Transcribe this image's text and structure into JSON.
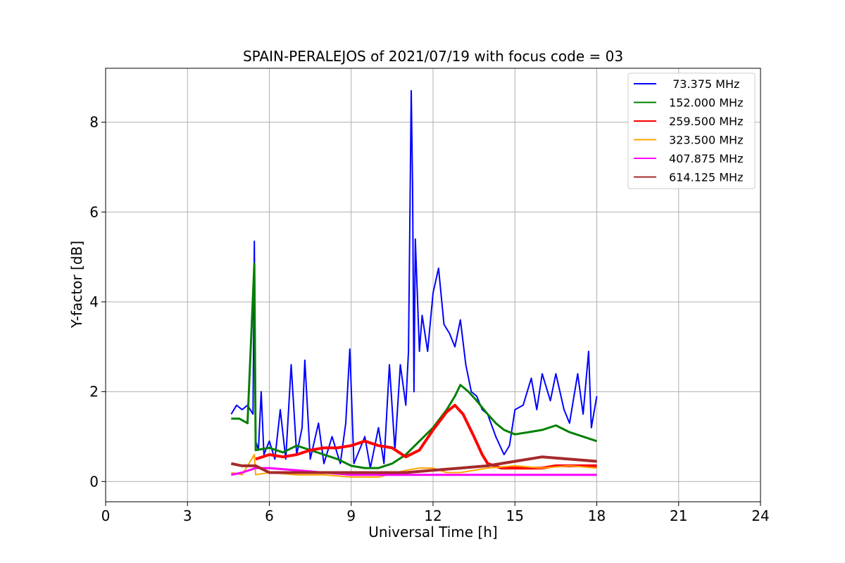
{
  "chart_data": {
    "type": "line",
    "title": "SPAIN-PERALEJOS of 2021/07/19 with focus code = 03",
    "xlabel": "Universal Time [h]",
    "ylabel": "Y-factor [dB]",
    "xlim": [
      0,
      24
    ],
    "ylim": [
      -0.45,
      9.2
    ],
    "xticks": [
      0,
      3,
      6,
      9,
      12,
      15,
      18,
      21,
      24
    ],
    "yticks": [
      0,
      2,
      4,
      6,
      8
    ],
    "grid": true,
    "legend_position": "top-right",
    "series": [
      {
        "name": " 73.375 MHz",
        "color": "#0000ff",
        "points": [
          [
            4.6,
            1.5
          ],
          [
            4.8,
            1.7
          ],
          [
            5.0,
            1.6
          ],
          [
            5.2,
            1.7
          ],
          [
            5.4,
            1.5
          ],
          [
            5.45,
            5.35
          ],
          [
            5.5,
            0.9
          ],
          [
            5.6,
            0.7
          ],
          [
            5.7,
            2.0
          ],
          [
            5.8,
            0.6
          ],
          [
            6.0,
            0.9
          ],
          [
            6.2,
            0.5
          ],
          [
            6.4,
            1.6
          ],
          [
            6.6,
            0.5
          ],
          [
            6.8,
            2.6
          ],
          [
            7.0,
            0.6
          ],
          [
            7.2,
            1.2
          ],
          [
            7.3,
            2.7
          ],
          [
            7.5,
            0.5
          ],
          [
            7.8,
            1.3
          ],
          [
            8.0,
            0.4
          ],
          [
            8.3,
            1.0
          ],
          [
            8.6,
            0.4
          ],
          [
            8.8,
            1.3
          ],
          [
            8.95,
            2.95
          ],
          [
            9.1,
            0.4
          ],
          [
            9.5,
            1.0
          ],
          [
            9.7,
            0.3
          ],
          [
            10.0,
            1.2
          ],
          [
            10.2,
            0.4
          ],
          [
            10.4,
            2.6
          ],
          [
            10.6,
            0.7
          ],
          [
            10.8,
            2.6
          ],
          [
            11.0,
            1.7
          ],
          [
            11.1,
            2.9
          ],
          [
            11.2,
            8.7
          ],
          [
            11.25,
            6.6
          ],
          [
            11.3,
            2.0
          ],
          [
            11.35,
            5.4
          ],
          [
            11.5,
            2.9
          ],
          [
            11.6,
            3.7
          ],
          [
            11.8,
            2.9
          ],
          [
            12.0,
            4.2
          ],
          [
            12.2,
            4.75
          ],
          [
            12.4,
            3.5
          ],
          [
            12.6,
            3.3
          ],
          [
            12.8,
            3.0
          ],
          [
            13.0,
            3.6
          ],
          [
            13.2,
            2.6
          ],
          [
            13.4,
            2.0
          ],
          [
            13.6,
            1.9
          ],
          [
            13.8,
            1.6
          ],
          [
            14.0,
            1.5
          ],
          [
            14.3,
            1.0
          ],
          [
            14.6,
            0.6
          ],
          [
            14.8,
            0.8
          ],
          [
            15.0,
            1.6
          ],
          [
            15.3,
            1.7
          ],
          [
            15.6,
            2.3
          ],
          [
            15.8,
            1.6
          ],
          [
            16.0,
            2.4
          ],
          [
            16.3,
            1.8
          ],
          [
            16.5,
            2.4
          ],
          [
            16.8,
            1.6
          ],
          [
            17.0,
            1.3
          ],
          [
            17.3,
            2.4
          ],
          [
            17.5,
            1.5
          ],
          [
            17.7,
            2.9
          ],
          [
            17.8,
            1.2
          ],
          [
            18.0,
            1.9
          ]
        ]
      },
      {
        "name": "152.000 MHz",
        "color": "#008000",
        "points": [
          [
            4.6,
            1.4
          ],
          [
            4.9,
            1.4
          ],
          [
            5.2,
            1.3
          ],
          [
            5.45,
            4.85
          ],
          [
            5.5,
            0.7
          ],
          [
            6.0,
            0.75
          ],
          [
            6.5,
            0.65
          ],
          [
            7.0,
            0.8
          ],
          [
            7.5,
            0.7
          ],
          [
            8.0,
            0.6
          ],
          [
            8.5,
            0.5
          ],
          [
            9.0,
            0.35
          ],
          [
            9.5,
            0.3
          ],
          [
            10.0,
            0.3
          ],
          [
            10.5,
            0.4
          ],
          [
            11.0,
            0.6
          ],
          [
            11.5,
            0.9
          ],
          [
            12.0,
            1.2
          ],
          [
            12.5,
            1.6
          ],
          [
            12.8,
            1.9
          ],
          [
            13.0,
            2.15
          ],
          [
            13.3,
            2.0
          ],
          [
            13.6,
            1.8
          ],
          [
            14.0,
            1.5
          ],
          [
            14.3,
            1.3
          ],
          [
            14.6,
            1.15
          ],
          [
            15.0,
            1.05
          ],
          [
            15.5,
            1.1
          ],
          [
            16.0,
            1.15
          ],
          [
            16.5,
            1.25
          ],
          [
            17.0,
            1.1
          ],
          [
            17.5,
            1.0
          ],
          [
            18.0,
            0.9
          ]
        ]
      },
      {
        "name": "259.500 MHz",
        "color": "#ff0000",
        "points": [
          [
            5.5,
            0.5
          ],
          [
            6.0,
            0.6
          ],
          [
            6.5,
            0.55
          ],
          [
            7.0,
            0.6
          ],
          [
            7.5,
            0.7
          ],
          [
            8.0,
            0.75
          ],
          [
            8.5,
            0.75
          ],
          [
            9.0,
            0.8
          ],
          [
            9.5,
            0.9
          ],
          [
            10.0,
            0.8
          ],
          [
            10.5,
            0.75
          ],
          [
            11.0,
            0.55
          ],
          [
            11.5,
            0.7
          ],
          [
            12.0,
            1.15
          ],
          [
            12.5,
            1.55
          ],
          [
            12.8,
            1.7
          ],
          [
            13.1,
            1.5
          ],
          [
            13.5,
            1.0
          ],
          [
            13.8,
            0.6
          ],
          [
            14.0,
            0.4
          ],
          [
            14.5,
            0.3
          ],
          [
            15.0,
            0.3
          ],
          [
            15.5,
            0.3
          ],
          [
            16.0,
            0.3
          ],
          [
            16.5,
            0.35
          ],
          [
            17.0,
            0.35
          ],
          [
            17.5,
            0.35
          ],
          [
            18.0,
            0.35
          ]
        ]
      },
      {
        "name": "323.500 MHz",
        "color": "#ffa500",
        "points": [
          [
            4.6,
            0.2
          ],
          [
            5.0,
            0.15
          ],
          [
            5.45,
            0.6
          ],
          [
            5.5,
            0.15
          ],
          [
            6.0,
            0.2
          ],
          [
            7.0,
            0.15
          ],
          [
            8.0,
            0.15
          ],
          [
            9.0,
            0.1
          ],
          [
            10.0,
            0.1
          ],
          [
            11.0,
            0.25
          ],
          [
            11.5,
            0.3
          ],
          [
            12.0,
            0.3
          ],
          [
            12.5,
            0.2
          ],
          [
            13.0,
            0.2
          ],
          [
            14.0,
            0.3
          ],
          [
            15.0,
            0.35
          ],
          [
            16.0,
            0.3
          ],
          [
            17.0,
            0.35
          ],
          [
            18.0,
            0.3
          ]
        ]
      },
      {
        "name": "407.875 MHz",
        "color": "#ff00ff",
        "points": [
          [
            4.6,
            0.15
          ],
          [
            5.0,
            0.2
          ],
          [
            5.5,
            0.3
          ],
          [
            6.0,
            0.3
          ],
          [
            7.0,
            0.25
          ],
          [
            8.0,
            0.2
          ],
          [
            9.0,
            0.15
          ],
          [
            10.0,
            0.15
          ],
          [
            11.0,
            0.15
          ],
          [
            12.0,
            0.15
          ],
          [
            13.0,
            0.15
          ],
          [
            14.0,
            0.15
          ],
          [
            15.0,
            0.15
          ],
          [
            16.0,
            0.15
          ],
          [
            17.0,
            0.15
          ],
          [
            18.0,
            0.15
          ]
        ]
      },
      {
        "name": "614.125 MHz",
        "color": "#a52a2a",
        "points": [
          [
            4.6,
            0.4
          ],
          [
            5.0,
            0.35
          ],
          [
            5.5,
            0.35
          ],
          [
            6.0,
            0.2
          ],
          [
            7.0,
            0.2
          ],
          [
            8.0,
            0.2
          ],
          [
            9.0,
            0.2
          ],
          [
            10.0,
            0.2
          ],
          [
            11.0,
            0.2
          ],
          [
            12.0,
            0.25
          ],
          [
            13.0,
            0.3
          ],
          [
            14.0,
            0.35
          ],
          [
            15.0,
            0.45
          ],
          [
            16.0,
            0.55
          ],
          [
            17.0,
            0.5
          ],
          [
            18.0,
            0.45
          ]
        ]
      }
    ]
  }
}
